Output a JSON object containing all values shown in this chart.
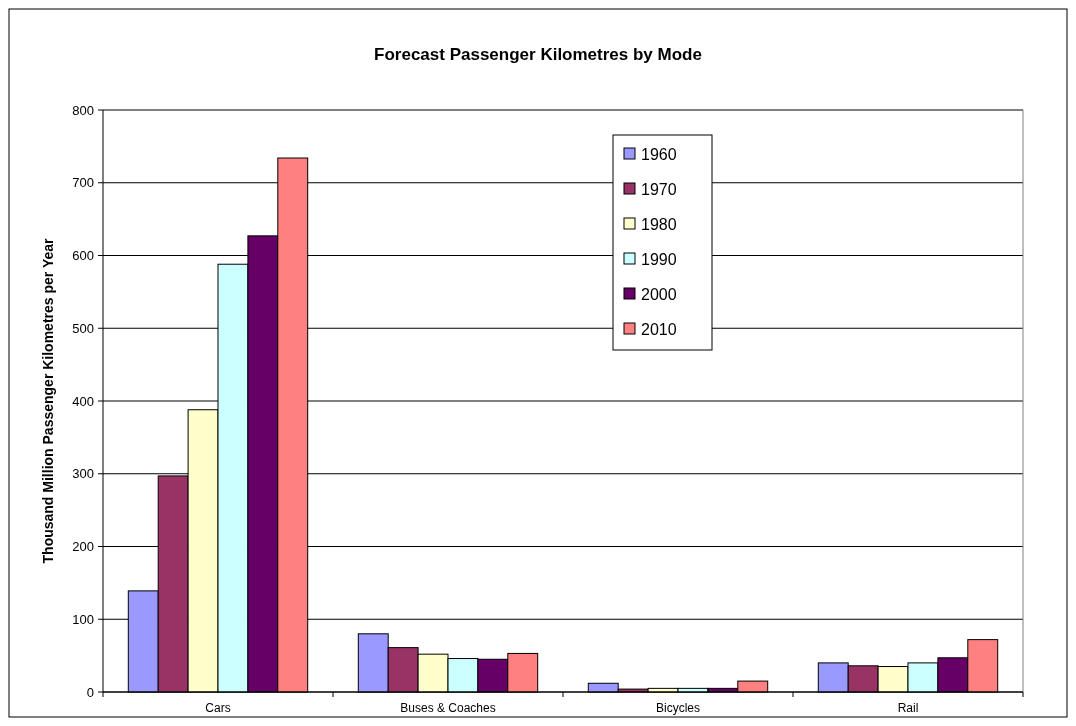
{
  "chart_data": {
    "type": "bar",
    "title": "Forecast Passenger Kilometres by Mode",
    "ylabel": "Thousand Million Passenger Kilometres per Year",
    "categories": [
      "Cars",
      "Buses & Coaches",
      "Bicycles",
      "Rail"
    ],
    "series": [
      {
        "name": "1960",
        "color": "#9999ff",
        "values": [
          139,
          80,
          12,
          40
        ]
      },
      {
        "name": "1970",
        "color": "#993366",
        "values": [
          297,
          61,
          4,
          36
        ]
      },
      {
        "name": "1980",
        "color": "#ffffcc",
        "values": [
          388,
          52,
          5,
          35
        ]
      },
      {
        "name": "1990",
        "color": "#ccffff",
        "values": [
          588,
          46,
          5,
          40
        ]
      },
      {
        "name": "2000",
        "color": "#660066",
        "values": [
          627,
          45,
          5,
          47
        ]
      },
      {
        "name": "2010",
        "color": "#ff8080",
        "values": [
          734,
          53,
          15,
          72
        ]
      }
    ],
    "ylim": [
      0,
      800
    ],
    "yticks": [
      0,
      100,
      200,
      300,
      400,
      500,
      600,
      700,
      800
    ],
    "grid": "y",
    "legend": "top right"
  }
}
